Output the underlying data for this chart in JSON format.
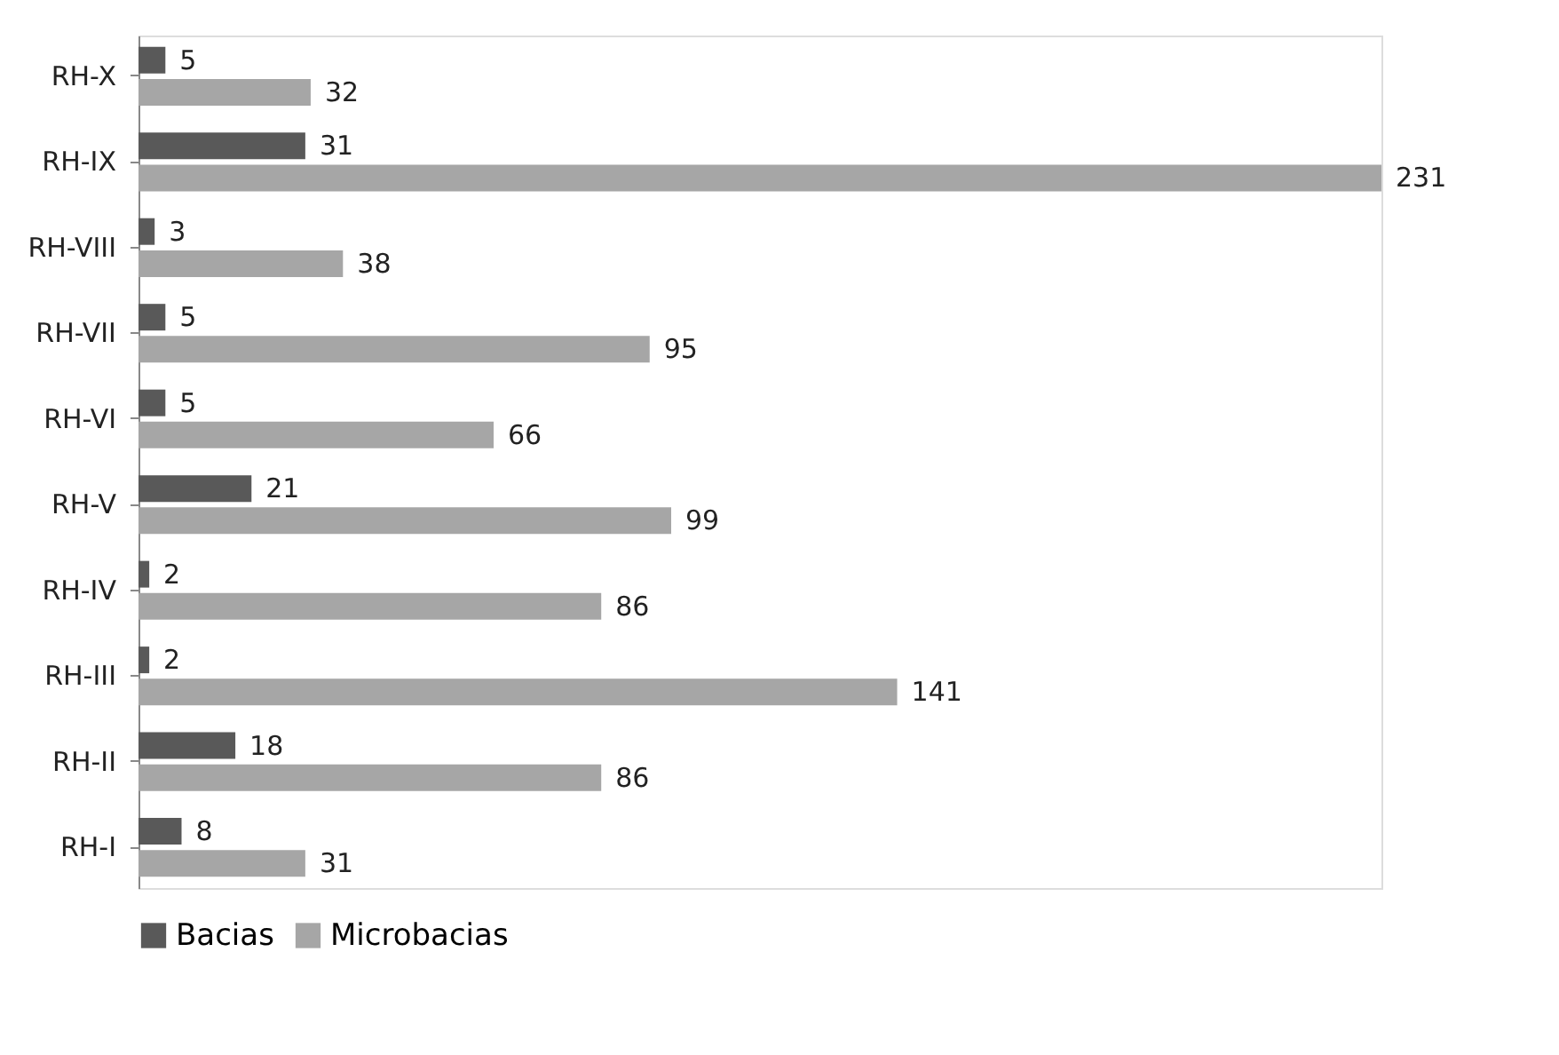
{
  "chart_data": {
    "type": "bar",
    "orientation": "horizontal",
    "categories": [
      "RH-X",
      "RH-IX",
      "RH-VIII",
      "RH-VII",
      "RH-VI",
      "RH-V",
      "RH-IV",
      "RH-III",
      "RH-II",
      "RH-I"
    ],
    "series": [
      {
        "name": "Bacias",
        "color": "#595959",
        "values": [
          5,
          31,
          3,
          5,
          5,
          21,
          2,
          2,
          18,
          8
        ]
      },
      {
        "name": "Microbacias",
        "color": "#a6a6a6",
        "values": [
          32,
          231,
          38,
          95,
          66,
          99,
          86,
          141,
          86,
          31
        ]
      }
    ],
    "data_labels": true,
    "legend": "bottom"
  }
}
